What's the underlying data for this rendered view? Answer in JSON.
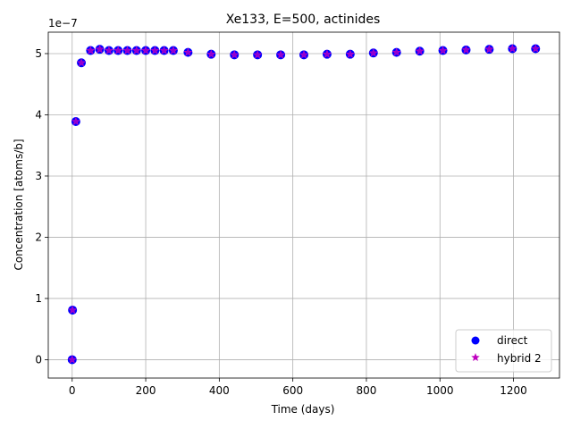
{
  "chart_data": {
    "type": "scatter",
    "title": "Xe133, E=500, actinides",
    "xlabel": "Time (days)",
    "ylabel": "Concentration [atoms/b]",
    "y_offset_label": "1e−7",
    "y_scale_factor": 1e-07,
    "xlim": [
      -65,
      1325
    ],
    "ylim": [
      -3e-08,
      5.35e-07
    ],
    "xticks": [
      0,
      200,
      400,
      600,
      800,
      1000,
      1200
    ],
    "xtick_labels": [
      "0",
      "200",
      "400",
      "600",
      "800",
      "1000",
      "1200"
    ],
    "yticks": [
      0,
      1e-07,
      2e-07,
      3e-07,
      4e-07,
      5e-07
    ],
    "ytick_labels": [
      "0",
      "1",
      "2",
      "3",
      "4",
      "5"
    ],
    "grid": true,
    "legend_position": "lower-right",
    "x": [
      0,
      1,
      10,
      25,
      50,
      75,
      100,
      125,
      150,
      175,
      200,
      225,
      250,
      275,
      315,
      378,
      441,
      504,
      567,
      630,
      693,
      756,
      819,
      882,
      945,
      1008,
      1071,
      1134,
      1197,
      1260
    ],
    "series": [
      {
        "name": "direct",
        "marker": "circle",
        "color": "#0000ff",
        "values": [
          0,
          8.1e-08,
          3.89e-07,
          4.85e-07,
          5.05e-07,
          5.07e-07,
          5.05e-07,
          5.05e-07,
          5.05e-07,
          5.05e-07,
          5.05e-07,
          5.05e-07,
          5.05e-07,
          5.05e-07,
          5.02e-07,
          4.99e-07,
          4.98e-07,
          4.98e-07,
          4.98e-07,
          4.98e-07,
          4.99e-07,
          4.99e-07,
          5.01e-07,
          5.02e-07,
          5.04e-07,
          5.05e-07,
          5.06e-07,
          5.07e-07,
          5.08e-07,
          5.08e-07
        ]
      },
      {
        "name": "hybrid 2",
        "marker": "star",
        "color": "#bf00bf",
        "values": [
          0,
          8.1e-08,
          3.89e-07,
          4.85e-07,
          5.05e-07,
          5.07e-07,
          5.05e-07,
          5.05e-07,
          5.05e-07,
          5.05e-07,
          5.05e-07,
          5.05e-07,
          5.05e-07,
          5.05e-07,
          5.02e-07,
          4.99e-07,
          4.98e-07,
          4.98e-07,
          4.98e-07,
          4.98e-07,
          4.99e-07,
          4.99e-07,
          5.01e-07,
          5.02e-07,
          5.04e-07,
          5.05e-07,
          5.06e-07,
          5.07e-07,
          5.08e-07,
          5.08e-07
        ]
      }
    ]
  }
}
